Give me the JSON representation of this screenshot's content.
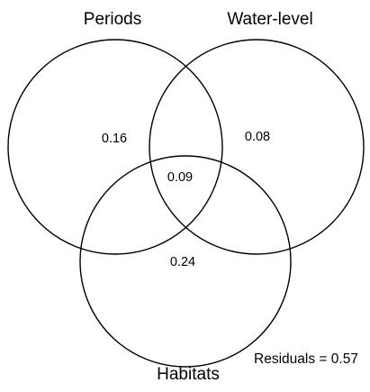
{
  "diagram": {
    "sets": [
      {
        "id": "periods",
        "label": "Periods"
      },
      {
        "id": "water_level",
        "label": "Water-level"
      },
      {
        "id": "habitats",
        "label": "Habitats"
      }
    ],
    "regions": [
      {
        "id": "periods_only",
        "sets": [
          "periods"
        ],
        "value": "0.16"
      },
      {
        "id": "water_level_only",
        "sets": [
          "water_level"
        ],
        "value": "0.08"
      },
      {
        "id": "all_three",
        "sets": [
          "periods",
          "water_level",
          "habitats"
        ],
        "value": "0.09"
      },
      {
        "id": "habitats_only",
        "sets": [
          "habitats"
        ],
        "value": "0.24"
      }
    ],
    "residuals": "Residuals = 0.57",
    "colors": {
      "stroke": "#000000",
      "text": "#000000",
      "background": "#ffffff"
    }
  }
}
